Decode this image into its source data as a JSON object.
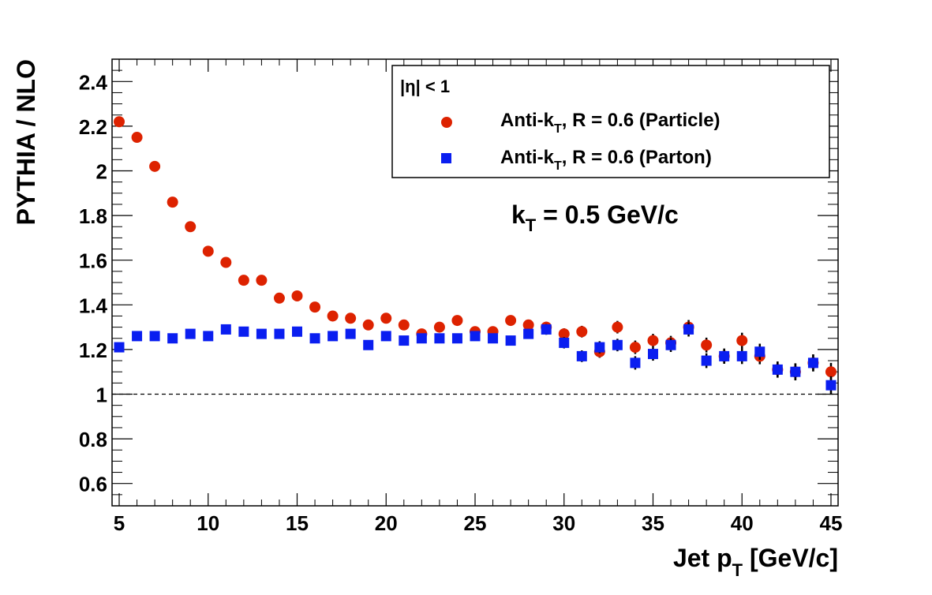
{
  "chart_data": {
    "type": "scatter",
    "xlabel_main": "Jet p",
    "xlabel_sub": "T",
    "xlabel_unit": " [GeV/c]",
    "ylabel": "PYTHIA / NLO",
    "xlim": [
      4.6,
      45.4
    ],
    "ylim": [
      0.5,
      2.5
    ],
    "xticks": [
      5,
      10,
      15,
      20,
      25,
      30,
      35,
      40,
      45
    ],
    "yticks": [
      0.6,
      0.8,
      1,
      1.2,
      1.4,
      1.6,
      1.8,
      2,
      2.2,
      2.4
    ],
    "reference_line": 1,
    "legend": {
      "header": "|η| < 1",
      "placement": "top-right",
      "entries": [
        {
          "label_main": "Anti-k",
          "label_sub": "T",
          "label_rest": ", R = 0.6 (Particle)"
        },
        {
          "label_main": "Anti-k",
          "label_sub": "T",
          "label_rest": ", R = 0.6 (Parton)"
        }
      ]
    },
    "annotation": {
      "main": "k",
      "sub": "T",
      "rest": " = 0.5 GeV/c"
    },
    "series": [
      {
        "marker": "circle",
        "color": "#dd2200",
        "x": [
          5,
          6,
          7,
          8,
          9,
          10,
          11,
          12,
          13,
          14,
          15,
          16,
          17,
          18,
          19,
          20,
          21,
          22,
          23,
          24,
          25,
          26,
          27,
          28,
          29,
          30,
          31,
          32,
          33,
          34,
          35,
          36,
          37,
          38,
          39,
          40,
          41,
          42,
          43,
          44,
          45
        ],
        "y": [
          2.22,
          2.15,
          2.02,
          1.86,
          1.75,
          1.64,
          1.59,
          1.51,
          1.51,
          1.43,
          1.44,
          1.39,
          1.35,
          1.34,
          1.31,
          1.34,
          1.31,
          1.27,
          1.3,
          1.33,
          1.28,
          1.28,
          1.33,
          1.31,
          1.3,
          1.27,
          1.28,
          1.19,
          1.3,
          1.21,
          1.24,
          1.23,
          1.3,
          1.22,
          1.17,
          1.24,
          1.17,
          1.11,
          1.1,
          1.14,
          1.1
        ],
        "err": [
          0.005,
          0.005,
          0.005,
          0.005,
          0.005,
          0.006,
          0.006,
          0.007,
          0.008,
          0.009,
          0.01,
          0.011,
          0.012,
          0.013,
          0.014,
          0.015,
          0.016,
          0.017,
          0.018,
          0.019,
          0.02,
          0.02,
          0.022,
          0.022,
          0.024,
          0.025,
          0.026,
          0.027,
          0.028,
          0.03,
          0.03,
          0.031,
          0.032,
          0.033,
          0.034,
          0.035,
          0.036,
          0.036,
          0.038,
          0.038,
          0.04
        ]
      },
      {
        "marker": "square",
        "color": "#0a1ef0",
        "x": [
          5,
          6,
          7,
          8,
          9,
          10,
          11,
          12,
          13,
          14,
          15,
          16,
          17,
          18,
          19,
          20,
          21,
          22,
          23,
          24,
          25,
          26,
          27,
          28,
          29,
          30,
          31,
          32,
          33,
          34,
          35,
          36,
          37,
          38,
          39,
          40,
          41,
          42,
          43,
          44,
          45
        ],
        "y": [
          1.21,
          1.26,
          1.26,
          1.25,
          1.27,
          1.26,
          1.29,
          1.28,
          1.27,
          1.27,
          1.28,
          1.25,
          1.26,
          1.27,
          1.22,
          1.26,
          1.24,
          1.25,
          1.25,
          1.25,
          1.26,
          1.25,
          1.24,
          1.27,
          1.29,
          1.23,
          1.17,
          1.21,
          1.22,
          1.14,
          1.18,
          1.22,
          1.29,
          1.15,
          1.17,
          1.17,
          1.19,
          1.11,
          1.1,
          1.14,
          1.04
        ],
        "err": [
          0.005,
          0.005,
          0.005,
          0.005,
          0.005,
          0.006,
          0.006,
          0.007,
          0.008,
          0.009,
          0.01,
          0.011,
          0.012,
          0.013,
          0.014,
          0.015,
          0.016,
          0.017,
          0.018,
          0.019,
          0.02,
          0.02,
          0.022,
          0.022,
          0.024,
          0.025,
          0.026,
          0.027,
          0.028,
          0.03,
          0.03,
          0.031,
          0.032,
          0.033,
          0.034,
          0.035,
          0.036,
          0.036,
          0.038,
          0.038,
          0.04
        ]
      }
    ]
  }
}
